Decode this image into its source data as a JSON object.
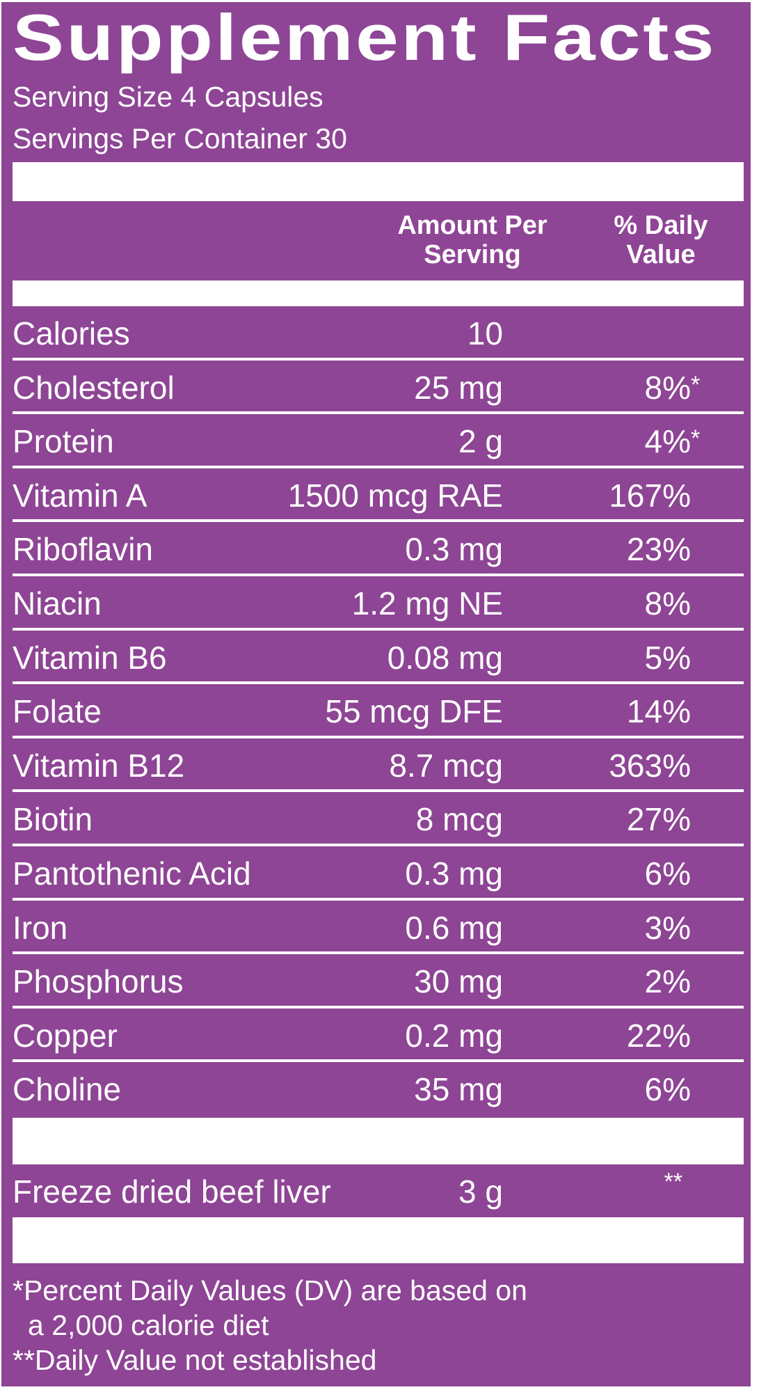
{
  "title": "Supplement Facts",
  "serving_size": "Serving Size 4 Capsules",
  "servings_per_container": "Servings Per Container 30",
  "header": {
    "amount_line1": "Amount Per",
    "amount_line2": "Serving",
    "dv_line1": "% Daily",
    "dv_line2": "Value"
  },
  "nutrients": [
    {
      "name": "Calories",
      "amount": "10",
      "dv": "",
      "mark": ""
    },
    {
      "name": "Cholesterol",
      "amount": "25 mg",
      "dv": "8%",
      "mark": "*"
    },
    {
      "name": "Protein",
      "amount": "2 g",
      "dv": "4%",
      "mark": "*"
    },
    {
      "name": "Vitamin A",
      "amount": "1500 mcg RAE",
      "dv": "167%",
      "mark": ""
    },
    {
      "name": "Riboflavin",
      "amount": "0.3 mg",
      "dv": "23%",
      "mark": ""
    },
    {
      "name": "Niacin",
      "amount": "1.2 mg NE",
      "dv": "8%",
      "mark": ""
    },
    {
      "name": "Vitamin B6",
      "amount": "0.08 mg",
      "dv": "5%",
      "mark": ""
    },
    {
      "name": "Folate",
      "amount": "55 mcg DFE",
      "dv": "14%",
      "mark": ""
    },
    {
      "name": "Vitamin B12",
      "amount": "8.7 mcg",
      "dv": "363%",
      "mark": ""
    },
    {
      "name": "Biotin",
      "amount": "8 mcg",
      "dv": "27%",
      "mark": ""
    },
    {
      "name": "Pantothenic Acid",
      "amount": "0.3 mg",
      "dv": "6%",
      "mark": ""
    },
    {
      "name": "Iron",
      "amount": "0.6 mg",
      "dv": "3%",
      "mark": ""
    },
    {
      "name": "Phosphorus",
      "amount": "30 mg",
      "dv": "2%",
      "mark": ""
    },
    {
      "name": "Copper",
      "amount": "0.2 mg",
      "dv": "22%",
      "mark": ""
    },
    {
      "name": "Choline",
      "amount": "35 mg",
      "dv": "6%",
      "mark": ""
    }
  ],
  "other_ingredient": {
    "name": "Freeze dried beef liver",
    "amount": "3 g",
    "dv": "**"
  },
  "footnotes": {
    "line1": "*Percent Daily Values (DV) are based on",
    "line2": "a 2,000 calorie diet",
    "line3": "**Daily Value not established"
  },
  "colors": {
    "panel": "#8e4595",
    "text": "#ffffff",
    "bars": "#ffffff"
  }
}
